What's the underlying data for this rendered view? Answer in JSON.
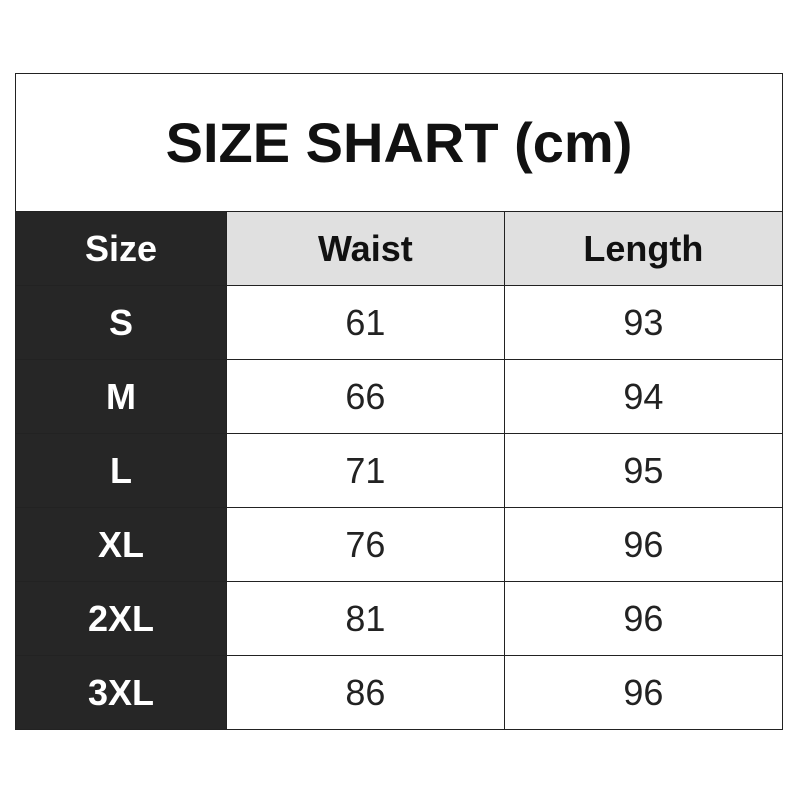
{
  "title": "SIZE SHART (cm)",
  "colors": {
    "size_column": "#262626",
    "header_bg": "#e0e0e0",
    "border": "#222222"
  },
  "headers": [
    "Size",
    "Waist",
    "Length"
  ],
  "rows": [
    [
      "S",
      "61",
      "93"
    ],
    [
      "M",
      "66",
      "94"
    ],
    [
      "L",
      "71",
      "95"
    ],
    [
      "XL",
      "76",
      "96"
    ],
    [
      "2XL",
      "81",
      "96"
    ],
    [
      "3XL",
      "86",
      "96"
    ]
  ]
}
